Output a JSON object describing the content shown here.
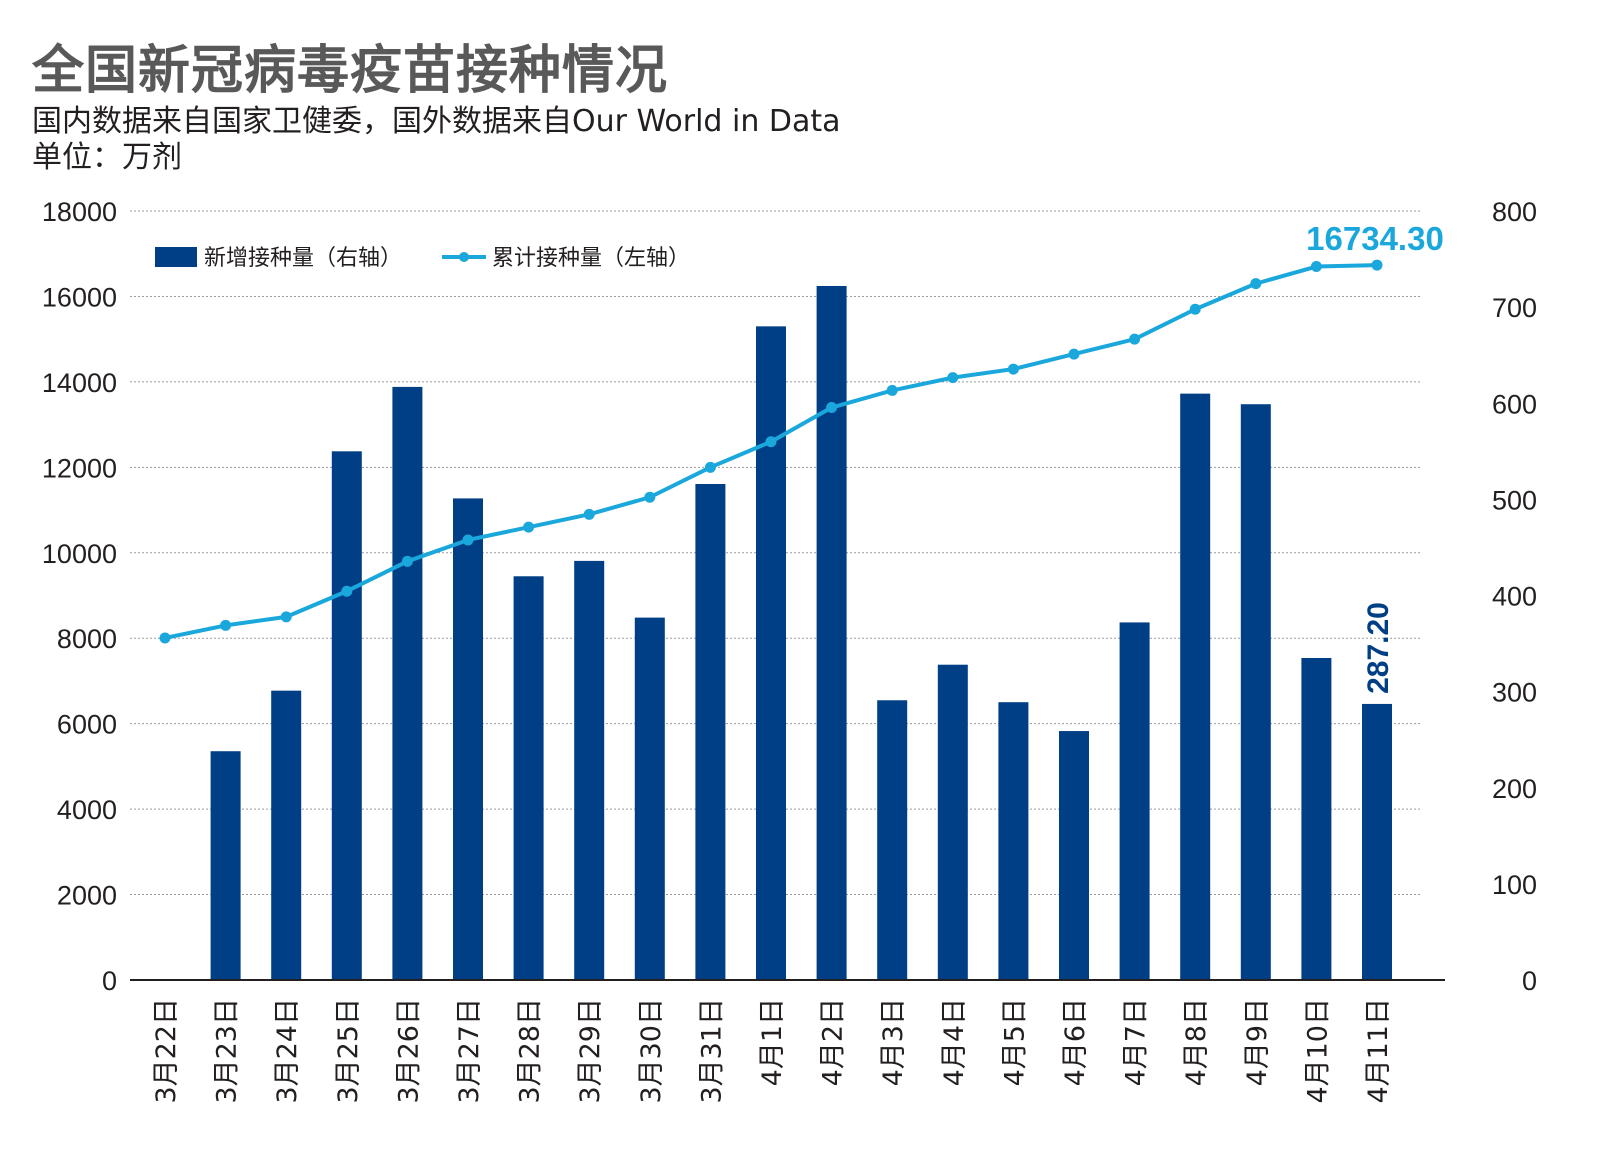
{
  "title": "全国新冠病毒疫苗接种情况",
  "subtitle": "国内数据来自国家卫健委，国外数据来自Our World in Data",
  "unit": "单位：万剂",
  "colors": {
    "bar": "#003f86",
    "line": "#1aa7dc",
    "grid": "#9a9a9a",
    "axis": "#231f20"
  },
  "chart_data": {
    "type": "bar+line",
    "categories": [
      "3月22日",
      "3月23日",
      "3月24日",
      "3月25日",
      "3月26日",
      "3月27日",
      "3月28日",
      "3月29日",
      "3月30日",
      "3月31日",
      "4月1日",
      "4月2日",
      "4月3日",
      "4月4日",
      "4月5日",
      "4月6日",
      "4月7日",
      "4月8日",
      "4月9日",
      "4月10日",
      "4月11日"
    ],
    "series": [
      {
        "name": "新增接种量（右轴）",
        "type": "bar",
        "axis": "right",
        "values": [
          0,
          238,
          301,
          550,
          617,
          501,
          420,
          436,
          377,
          516,
          680,
          722,
          291,
          328,
          289,
          259,
          372,
          610,
          599,
          335,
          287.2
        ]
      },
      {
        "name": "累计接种量（左轴）",
        "type": "line",
        "axis": "left",
        "values": [
          8006,
          8300,
          8500,
          9100,
          9800,
          10300,
          10600,
          10900,
          11300,
          12000,
          12600,
          13400,
          13800,
          14100,
          14300,
          14650,
          15000,
          15700,
          16300,
          16700,
          16734.3
        ]
      }
    ],
    "left_axis": {
      "min": 0,
      "max": 18000,
      "ticks": [
        "0",
        "2000",
        "4000",
        "6000",
        "8000",
        "10000",
        "12000",
        "14000",
        "16000",
        "18000"
      ]
    },
    "right_axis": {
      "min": 0,
      "max": 800,
      "ticks": [
        "0",
        "100",
        "200",
        "300",
        "400",
        "500",
        "600",
        "700",
        "800"
      ]
    },
    "annotations": {
      "line_last": "16734.30",
      "bar_last": "287.20"
    },
    "grid": true,
    "legend_position": "top-left"
  }
}
